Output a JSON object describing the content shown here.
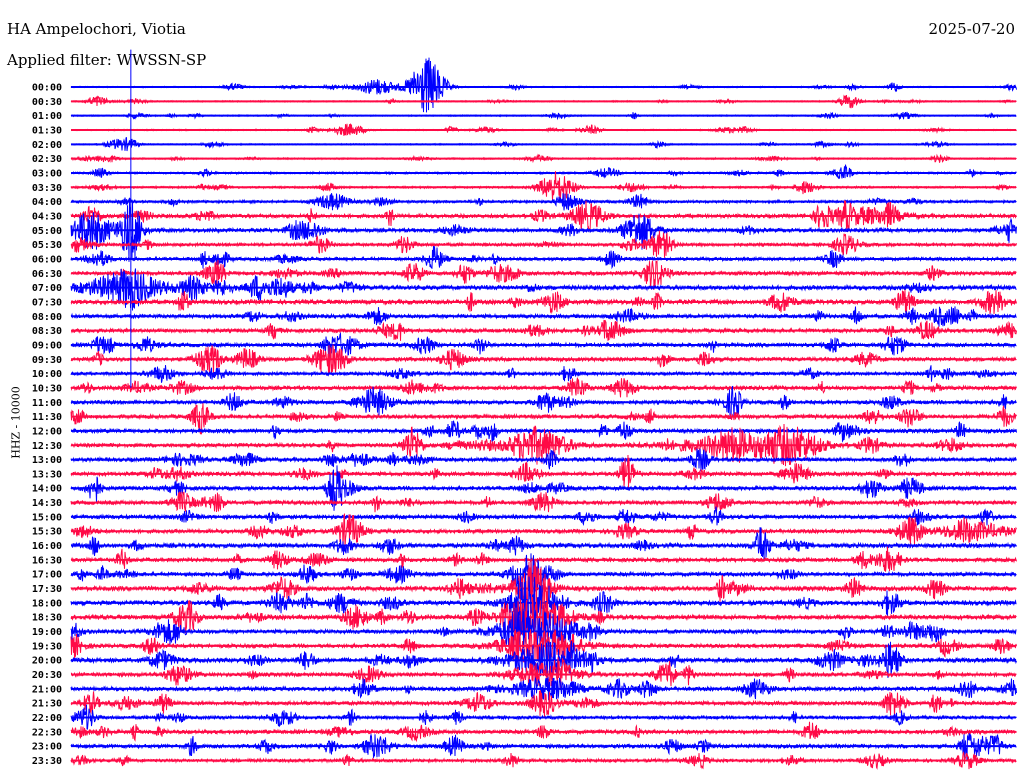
{
  "header": {
    "station": "HA Ampelochori, Viotia",
    "filter": "Applied filter: WWSSN-SP",
    "date": "2025-07-20"
  },
  "chart_data": {
    "type": "line",
    "title": "HA Ampelochori, Viotia",
    "ylabel": "HHZ - 10000",
    "minutes_per_line": 30,
    "colors": [
      "#0000ff",
      "#ff0a46"
    ],
    "row_labels": [
      "00:00",
      "00:30",
      "01:00",
      "01:30",
      "02:00",
      "02:30",
      "03:00",
      "03:30",
      "04:00",
      "04:30",
      "05:00",
      "05:30",
      "06:00",
      "06:30",
      "07:00",
      "07:30",
      "08:00",
      "08:30",
      "09:00",
      "09:30",
      "10:00",
      "10:30",
      "11:00",
      "11:30",
      "12:00",
      "12:30",
      "13:00",
      "13:30",
      "14:00",
      "14:30",
      "15:00",
      "15:30",
      "16:00",
      "16:30",
      "17:00",
      "17:30",
      "18:00",
      "18:30",
      "19:00",
      "19:30",
      "20:00",
      "20:30",
      "21:00",
      "21:30",
      "22:00",
      "22:30",
      "23:00",
      "23:30"
    ],
    "noise_level": [
      1,
      1,
      1,
      1,
      1,
      1.2,
      1.5,
      1.5,
      2,
      3,
      3,
      2.5,
      2.5,
      3,
      3.5,
      3.5,
      3,
      3,
      3,
      3,
      2.5,
      3,
      3,
      3,
      3,
      3,
      3,
      3,
      3,
      3,
      3,
      3,
      3.5,
      3,
      3,
      3.5,
      3.5,
      3.5,
      3,
      3,
      3.5,
      3,
      3,
      3,
      2.5,
      3,
      3,
      2.5
    ],
    "events": [
      {
        "row": 0,
        "minute": 11.3,
        "amp": 30,
        "dur": 0.5
      },
      {
        "row": 0,
        "minute": 9.7,
        "amp": 8,
        "dur": 0.6
      },
      {
        "row": 1,
        "minute": 24.7,
        "amp": 7,
        "dur": 0.3
      },
      {
        "row": 3,
        "minute": 8.8,
        "amp": 6,
        "dur": 0.5
      },
      {
        "row": 7,
        "minute": 15.4,
        "amp": 16,
        "dur": 0.5
      },
      {
        "row": 8,
        "minute": 8.3,
        "amp": 8,
        "dur": 0.5
      },
      {
        "row": 9,
        "minute": 16.4,
        "amp": 14,
        "dur": 0.5
      },
      {
        "row": 9,
        "minute": 25.3,
        "amp": 8,
        "dur": 1.0
      },
      {
        "row": 10,
        "minute": 18.0,
        "amp": 14,
        "dur": 0.5
      },
      {
        "row": 10,
        "minute": 1.9,
        "amp": 30,
        "dur": 0.3
      },
      {
        "row": 10,
        "minute": 0.8,
        "amp": 8,
        "dur": 1.0
      },
      {
        "row": 11,
        "minute": 7.9,
        "amp": 8,
        "dur": 0.3
      },
      {
        "row": 13,
        "minute": 13.6,
        "amp": 8,
        "dur": 0.4
      },
      {
        "row": 13,
        "minute": 18.6,
        "amp": 8,
        "dur": 0.4
      },
      {
        "row": 14,
        "minute": 1.7,
        "amp": 14,
        "dur": 1.2
      },
      {
        "row": 18,
        "minute": 8.6,
        "amp": 10,
        "dur": 0.5
      },
      {
        "row": 22,
        "minute": 9.6,
        "amp": 14,
        "dur": 0.5
      },
      {
        "row": 23,
        "minute": 4.1,
        "amp": 10,
        "dur": 0.3
      },
      {
        "row": 25,
        "minute": 14.8,
        "amp": 18,
        "dur": 0.9
      },
      {
        "row": 25,
        "minute": 22.8,
        "amp": 16,
        "dur": 0.9
      },
      {
        "row": 25,
        "minute": 21.0,
        "amp": 8,
        "dur": 2.0
      },
      {
        "row": 27,
        "minute": 23.0,
        "amp": 10,
        "dur": 0.4
      },
      {
        "row": 28,
        "minute": 25.4,
        "amp": 10,
        "dur": 0.3
      },
      {
        "row": 31,
        "minute": 28.6,
        "amp": 9,
        "dur": 1.0
      },
      {
        "row": 34,
        "minute": 14.5,
        "amp": 20,
        "dur": 0.5
      },
      {
        "row": 35,
        "minute": 14.6,
        "amp": 20,
        "dur": 0.6
      },
      {
        "row": 36,
        "minute": 14.7,
        "amp": 22,
        "dur": 0.8
      },
      {
        "row": 37,
        "minute": 14.8,
        "amp": 22,
        "dur": 1.0
      },
      {
        "row": 38,
        "minute": 14.8,
        "amp": 20,
        "dur": 1.2
      },
      {
        "row": 39,
        "minute": 14.9,
        "amp": 16,
        "dur": 1.2
      },
      {
        "row": 40,
        "minute": 15.0,
        "amp": 14,
        "dur": 1.2
      },
      {
        "row": 41,
        "minute": 15.0,
        "amp": 12,
        "dur": 1.0
      },
      {
        "row": 42,
        "minute": 15.0,
        "amp": 10,
        "dur": 1.0
      },
      {
        "row": 43,
        "minute": 15.0,
        "amp": 12,
        "dur": 0.4
      },
      {
        "row": 40,
        "minute": 26.0,
        "amp": 18,
        "dur": 0.3
      },
      {
        "row": 40,
        "minute": 24.1,
        "amp": 10,
        "dur": 0.4
      },
      {
        "row": 46,
        "minute": 9.7,
        "amp": 12,
        "dur": 0.4
      }
    ],
    "markers": [
      {
        "minute": 1.9,
        "from_row": -1,
        "to_row": 21
      }
    ]
  }
}
